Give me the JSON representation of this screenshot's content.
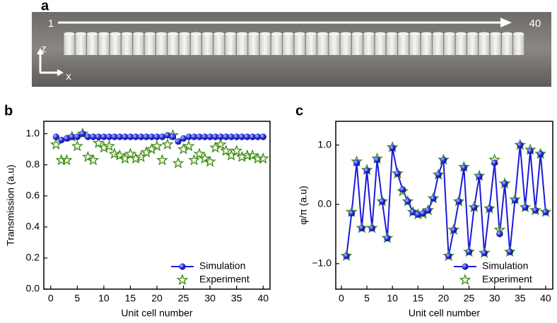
{
  "panel_labels": [
    "a",
    "b",
    "c"
  ],
  "photo": {
    "start_label": "1",
    "end_label": "40",
    "axis_z": "z",
    "axis_x": "x"
  },
  "chart_data": [
    {
      "type": "scatter",
      "ylabel": "Transmission (a.u)",
      "xlabel": "Unit cell number",
      "x": [
        1,
        2,
        3,
        4,
        5,
        6,
        7,
        8,
        9,
        10,
        11,
        12,
        13,
        14,
        15,
        16,
        17,
        18,
        19,
        20,
        21,
        22,
        23,
        24,
        25,
        26,
        27,
        28,
        29,
        30,
        31,
        32,
        33,
        34,
        35,
        36,
        37,
        38,
        39,
        40
      ],
      "xlim": [
        -1.3,
        41.3
      ],
      "xticks": [
        0,
        5,
        10,
        15,
        20,
        25,
        30,
        35,
        40
      ],
      "ylim": [
        0,
        1.08
      ],
      "yticks": [
        {
          "value": 0,
          "label": "0.0"
        },
        {
          "value": 0.2,
          "label": "0.2"
        },
        {
          "value": 0.4,
          "label": "0.4"
        },
        {
          "value": 0.6,
          "label": "0.6"
        },
        {
          "value": 0.8,
          "label": "0.8"
        },
        {
          "value": 1,
          "label": "1.0"
        }
      ],
      "legend": "lower right",
      "series": [
        {
          "name": "Simulation",
          "color": "#1a1adb",
          "marker": "circle",
          "line": false,
          "values": [
            0.98,
            0.96,
            0.97,
            0.98,
            0.98,
            1.0,
            0.98,
            0.98,
            0.98,
            0.98,
            0.98,
            0.98,
            0.98,
            0.98,
            0.98,
            0.98,
            0.98,
            0.98,
            0.98,
            0.98,
            0.98,
            0.99,
            0.98,
            0.95,
            0.97,
            0.98,
            0.98,
            0.98,
            0.98,
            0.98,
            0.98,
            0.98,
            0.98,
            0.98,
            0.98,
            0.98,
            0.98,
            0.98,
            0.98,
            0.98
          ]
        },
        {
          "name": "Experiment",
          "color": "#3a8a1a",
          "marker": "star",
          "line": false,
          "values": [
            0.93,
            0.83,
            0.83,
            0.98,
            0.92,
            1.0,
            0.85,
            0.83,
            0.94,
            0.91,
            0.92,
            0.87,
            0.86,
            0.84,
            0.87,
            0.84,
            0.85,
            0.88,
            0.9,
            0.92,
            0.83,
            0.93,
            0.99,
            0.81,
            0.9,
            0.92,
            0.83,
            0.87,
            0.84,
            0.82,
            0.91,
            0.93,
            0.89,
            0.86,
            0.89,
            0.85,
            0.86,
            0.86,
            0.84,
            0.84
          ]
        }
      ]
    },
    {
      "type": "line",
      "ylabel": "φ/π (a.u)",
      "xlabel": "Unit cell number",
      "x": [
        1,
        2,
        3,
        4,
        5,
        6,
        7,
        8,
        9,
        10,
        11,
        12,
        13,
        14,
        15,
        16,
        17,
        18,
        19,
        20,
        21,
        22,
        23,
        24,
        25,
        26,
        27,
        28,
        29,
        30,
        31,
        32,
        33,
        34,
        35,
        36,
        37,
        38,
        39,
        40
      ],
      "xlim": [
        -1.1,
        41.4
      ],
      "xticks": [
        0,
        5,
        10,
        15,
        20,
        25,
        30,
        35,
        40
      ],
      "ylim": [
        -1.43,
        1.4
      ],
      "yticks": [
        {
          "value": -1,
          "label": "−1.0"
        },
        {
          "value": 0,
          "label": "0.0"
        },
        {
          "value": 1,
          "label": "1.0"
        }
      ],
      "legend": "lower right",
      "series": [
        {
          "name": "Simulation",
          "color": "#1a1adb",
          "marker": "circle",
          "line": true,
          "values": [
            -0.87,
            -0.15,
            0.7,
            -0.4,
            0.57,
            -0.4,
            0.75,
            0.05,
            -0.57,
            0.95,
            0.52,
            0.25,
            0.05,
            -0.13,
            -0.17,
            -0.15,
            -0.1,
            0.1,
            0.5,
            0.75,
            -0.87,
            -0.43,
            0.05,
            0.62,
            -0.8,
            -0.05,
            0.47,
            -0.82,
            -0.07,
            0.7,
            -0.5,
            0.35,
            -0.8,
            0.07,
            1.0,
            -0.05,
            0.9,
            -0.1,
            0.85,
            -0.13
          ]
        },
        {
          "name": "Experiment",
          "color": "#3a8a1a",
          "marker": "star",
          "line": false,
          "values": [
            -0.87,
            -0.13,
            0.72,
            -0.4,
            0.58,
            -0.4,
            0.77,
            0.05,
            -0.57,
            0.96,
            0.52,
            0.22,
            0.05,
            -0.13,
            -0.17,
            -0.16,
            -0.1,
            0.1,
            0.5,
            0.75,
            -0.87,
            -0.43,
            0.05,
            0.63,
            -0.8,
            -0.05,
            0.48,
            -0.82,
            -0.07,
            0.75,
            -0.43,
            0.35,
            -0.8,
            0.08,
            1.0,
            -0.05,
            0.92,
            -0.1,
            0.85,
            -0.13
          ]
        }
      ]
    }
  ]
}
